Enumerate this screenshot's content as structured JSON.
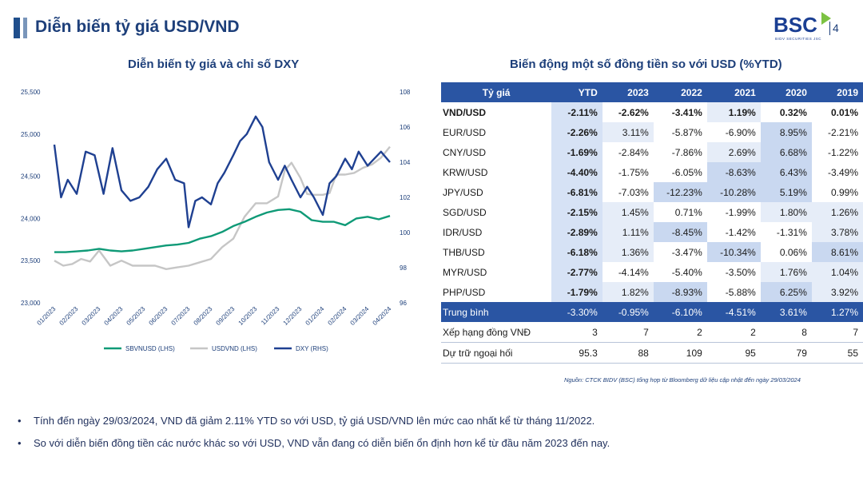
{
  "header": {
    "title": "Diễn biến tỷ giá USD/VND",
    "logo_text": "BSC",
    "logo_sub": "BIDV SECURITIES JSC",
    "page_number": "4"
  },
  "colors": {
    "sbv": "#0f9a77",
    "usdvnd": "#c6c6c6",
    "dxy": "#1f4091",
    "table_header": "#2a55a3"
  },
  "chart_data": [
    {
      "type": "line",
      "title": "Diễn biến tỷ giá và chỉ số DXY",
      "x_ticks": [
        "01/2023",
        "02/2023",
        "03/2023",
        "04/2023",
        "05/2023",
        "06/2023",
        "07/2023",
        "08/2023",
        "09/2023",
        "10/2023",
        "11/2023",
        "12/2023",
        "01/2024",
        "02/2024",
        "03/2024",
        "04/2024"
      ],
      "y_left": {
        "lim": [
          23000,
          25500
        ],
        "ticks": [
          "23,000",
          "23,500",
          "24,000",
          "24,500",
          "25,000",
          "25,500"
        ]
      },
      "y_right": {
        "lim": [
          96,
          108
        ],
        "ticks": [
          "96",
          "98",
          "100",
          "102",
          "104",
          "106",
          "108"
        ]
      },
      "legend_position": "bottom",
      "series": [
        {
          "name": "SBVNUSD (LHS)",
          "axis": "left",
          "color_key": "sbv",
          "x": [
            0,
            0.5,
            1,
            1.5,
            2,
            2.5,
            3,
            3.5,
            4,
            4.5,
            5,
            5.5,
            6,
            6.5,
            7,
            7.5,
            8,
            8.5,
            9,
            9.5,
            10,
            10.5,
            11,
            11.5,
            12,
            12.5,
            13,
            13.5,
            14,
            14.5,
            15
          ],
          "y": [
            23600,
            23600,
            23610,
            23620,
            23640,
            23620,
            23610,
            23620,
            23640,
            23660,
            23680,
            23690,
            23710,
            23760,
            23790,
            23840,
            23910,
            23960,
            24020,
            24070,
            24100,
            24110,
            24080,
            23980,
            23960,
            23960,
            23920,
            24000,
            24020,
            23990,
            24030
          ]
        },
        {
          "name": "USDVND (LHS)",
          "axis": "left",
          "color_key": "usdvnd",
          "x": [
            0,
            0.4,
            0.8,
            1.2,
            1.6,
            2,
            2.5,
            3,
            3.5,
            4,
            4.5,
            5,
            5.5,
            6,
            6.5,
            7,
            7.5,
            8,
            8.5,
            9,
            9.5,
            10,
            10.3,
            10.6,
            11,
            11.3,
            11.6,
            12,
            12.3,
            12.6,
            13,
            13.4,
            13.8,
            14.2,
            14.6,
            15
          ],
          "y": [
            23500,
            23440,
            23460,
            23520,
            23490,
            23620,
            23440,
            23500,
            23440,
            23440,
            23440,
            23400,
            23420,
            23440,
            23480,
            23520,
            23660,
            23760,
            24020,
            24180,
            24180,
            24260,
            24570,
            24660,
            24480,
            24290,
            24280,
            24280,
            24300,
            24520,
            24520,
            24540,
            24600,
            24640,
            24720,
            24850
          ]
        },
        {
          "name": "DXY (RHS)",
          "axis": "right",
          "color_key": "dxy",
          "x": [
            0,
            0.3,
            0.6,
            1,
            1.4,
            1.8,
            2.2,
            2.6,
            3,
            3.4,
            3.8,
            4.2,
            4.6,
            5,
            5.4,
            5.8,
            6,
            6.3,
            6.6,
            7,
            7.3,
            7.6,
            8,
            8.3,
            8.6,
            9,
            9.3,
            9.6,
            10,
            10.3,
            10.6,
            11,
            11.3,
            11.6,
            12,
            12.3,
            12.6,
            13,
            13.3,
            13.6,
            14,
            14.3,
            14.6,
            15
          ],
          "y": [
            105.0,
            102.0,
            103.0,
            102.2,
            104.6,
            104.4,
            102.2,
            104.8,
            102.4,
            101.8,
            102.0,
            102.6,
            103.6,
            104.2,
            103.0,
            102.8,
            100.3,
            101.8,
            102.0,
            101.6,
            102.8,
            103.4,
            104.4,
            105.2,
            105.6,
            106.6,
            106.0,
            104.0,
            103.0,
            103.8,
            103.0,
            102.0,
            102.6,
            102.0,
            101.0,
            102.8,
            103.2,
            104.2,
            103.6,
            104.6,
            103.8,
            104.2,
            104.6,
            104.0
          ]
        }
      ]
    },
    {
      "type": "table",
      "title": "Biến động một số đồng tiền so với USD (%YTD)",
      "columns": [
        "Tỷ giá",
        "YTD",
        "2023",
        "2022",
        "2021",
        "2020",
        "2019"
      ],
      "rows": [
        [
          "VND/USD",
          "-2.11%",
          "-2.62%",
          "-3.41%",
          "1.19%",
          "0.32%",
          "0.01%"
        ],
        [
          "EUR/USD",
          "-2.26%",
          "3.11%",
          "-5.87%",
          "-6.90%",
          "8.95%",
          "-2.21%"
        ],
        [
          "CNY/USD",
          "-1.69%",
          "-2.84%",
          "-7.86%",
          "2.69%",
          "6.68%",
          "-1.22%"
        ],
        [
          "KRW/USD",
          "-4.40%",
          "-1.75%",
          "-6.05%",
          "-8.63%",
          "6.43%",
          "-3.49%"
        ],
        [
          "JPY/USD",
          "-6.81%",
          "-7.03%",
          "-12.23%",
          "-10.28%",
          "5.19%",
          "0.99%"
        ],
        [
          "SGD/USD",
          "-2.15%",
          "1.45%",
          "0.71%",
          "-1.99%",
          "1.80%",
          "1.26%"
        ],
        [
          "IDR/USD",
          "-2.89%",
          "1.11%",
          "-8.45%",
          "-1.42%",
          "-1.31%",
          "3.78%"
        ],
        [
          "THB/USD",
          "-6.18%",
          "1.36%",
          "-3.47%",
          "-10.34%",
          "0.06%",
          "8.61%"
        ],
        [
          "MYR/USD",
          "-2.77%",
          "-4.14%",
          "-5.40%",
          "-3.50%",
          "1.76%",
          "1.04%"
        ],
        [
          "PHP/USD",
          "-1.79%",
          "1.82%",
          "-8.93%",
          "-5.88%",
          "6.25%",
          "3.92%"
        ]
      ],
      "average": [
        "Trung bình",
        "-3.30%",
        "-0.95%",
        "-6.10%",
        "-4.51%",
        "3.61%",
        "1.27%"
      ],
      "extra_rows": [
        [
          "Xếp hạng đồng VNĐ",
          "3",
          "7",
          "2",
          "2",
          "8",
          "7"
        ],
        [
          "Dự trữ ngoại hối",
          "95.3",
          "88",
          "109",
          "95",
          "79",
          "55"
        ]
      ]
    }
  ],
  "source_note": "Nguồn: CTCK BIDV (BSC) tổng hợp từ Bloomberg dữ liệu cập nhật đến ngày 29/03/2024",
  "bullets": [
    "Tính đến ngày 29/03/2024, VND đã giảm 2.11% YTD so với USD, tỷ giá USD/VND lên mức cao nhất kể từ tháng 11/2022.",
    "So với diễn biến đồng tiền các nước khác so với USD, VND vẫn đang có diễn biến ổn định hơn kể từ đầu năm 2023 đến nay."
  ],
  "bullet_symbol": "•"
}
